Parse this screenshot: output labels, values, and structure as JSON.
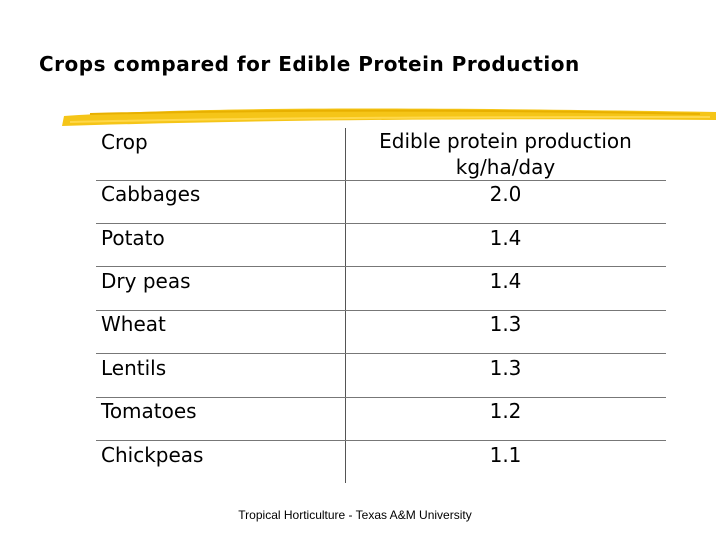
{
  "slide": {
    "title": "Crops compared for Edible Protein Production",
    "accent_color": "#F5C518",
    "footer": "Tropical Horticulture - Texas A&M University"
  },
  "table": {
    "header_crop": "Crop",
    "header_value_line1": "Edible protein production",
    "header_value_line2": "kg/ha/day",
    "rows": [
      {
        "crop": "Cabbages",
        "value": "2.0"
      },
      {
        "crop": "Potato",
        "value": "1.4"
      },
      {
        "crop": "Dry peas",
        "value": "1.4"
      },
      {
        "crop": "Wheat",
        "value": "1.3"
      },
      {
        "crop": "Lentils",
        "value": "1.3"
      },
      {
        "crop": "Tomatoes",
        "value": "1.2"
      },
      {
        "crop": "Chickpeas",
        "value": "1.1"
      }
    ]
  }
}
